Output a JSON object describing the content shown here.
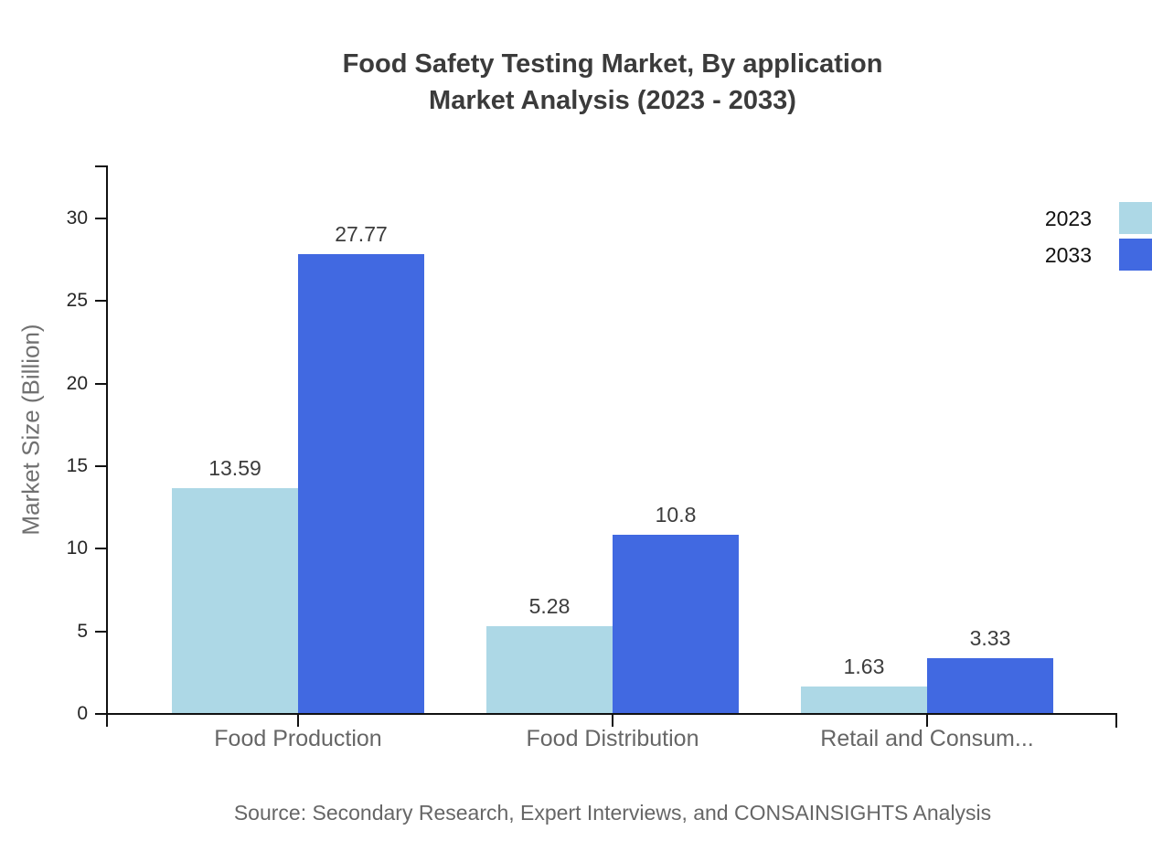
{
  "page": {
    "background": "#ffffff"
  },
  "chart_data": {
    "type": "bar",
    "title": "Food Safety Testing Market, By application",
    "subtitle": "Market Analysis (2023 - 2033)",
    "ylabel": "Market Size (Billion)",
    "xlabel": "",
    "source": "Source: Secondary Research, Expert Interviews, and CONSAINSIGHTS Analysis",
    "categories": [
      "Food Production",
      "Food Distribution",
      "Retail and Consum..."
    ],
    "series": [
      {
        "name": "2023",
        "color": "#add8e6",
        "values": [
          13.59,
          5.28,
          1.63
        ]
      },
      {
        "name": "2033",
        "color": "#4169e1",
        "values": [
          27.77,
          10.8,
          3.33
        ]
      }
    ],
    "yticks": [
      0,
      5,
      10,
      15,
      20,
      25,
      30
    ],
    "ylim": [
      0,
      33.2
    ],
    "grid": false,
    "legend_position": "top-right",
    "bar_value_labels_shown": true,
    "colors": {
      "axis": "#111111",
      "tick_label": "#262626",
      "category_label": "#666666",
      "value_label": "#3c3c3c",
      "title": "#3b3b3b",
      "source": "#666666",
      "series_2023": "#add8e6",
      "series_2033": "#4169e1"
    }
  }
}
